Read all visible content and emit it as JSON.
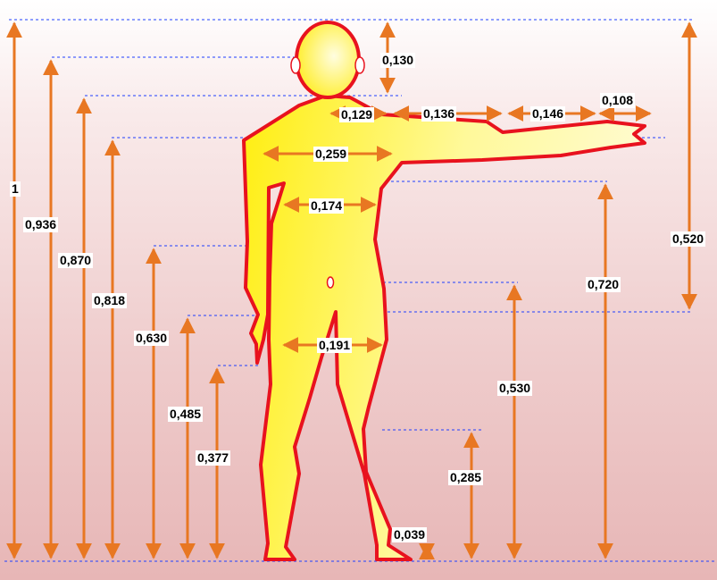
{
  "diagram": {
    "colors": {
      "arrow": "#e87722",
      "guide": "#1f3fff",
      "body_outline": "#e8121e",
      "body_fill_light": "#fffcc8",
      "body_fill_dark": "#ffec00"
    },
    "labels": {
      "total_height": "1",
      "eye_height": "0,936",
      "chin_height": "0,870",
      "shoulder_height": "0,818",
      "hand_tip_height": "0,630",
      "knuckle_height": "0,485",
      "fingertip_height": "0,377",
      "head_height": "0,130",
      "neck_to_shoulder": "0,129",
      "upper_arm": "0,136",
      "forearm": "0,146",
      "hand": "0,108",
      "shoulder_width": "0,259",
      "chest_width": "0,174",
      "hip_width": "0,191",
      "armpit_height": "0,720",
      "navel_height": "0,530",
      "arm_to_top": "0,520",
      "knee_height": "0,285",
      "ankle_height": "0,039"
    }
  }
}
